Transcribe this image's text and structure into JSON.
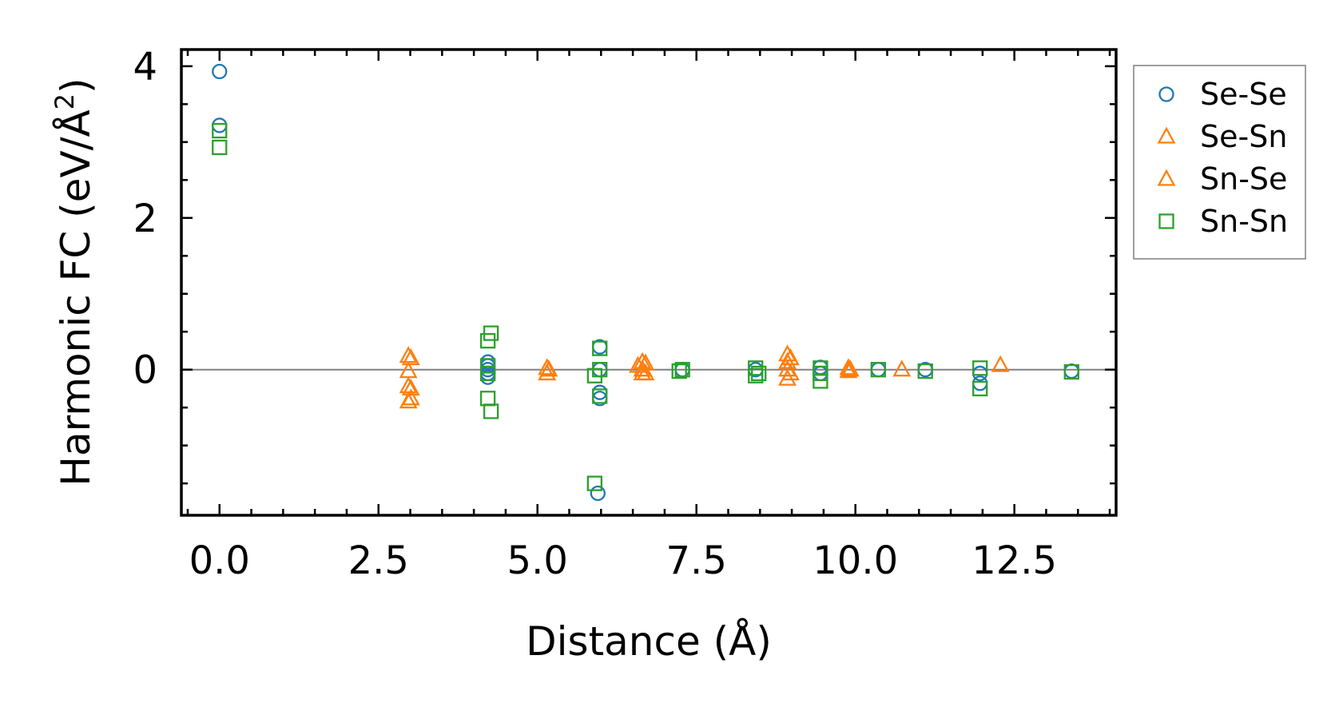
{
  "chart_data": {
    "type": "scatter",
    "xlabel": "Distance (Å)",
    "ylabel_main": "Harmonic FC (eV/Å",
    "ylabel_sup": "2",
    "ylabel_close": ")",
    "xlim": [
      -0.6,
      14.1
    ],
    "ylim": [
      -1.92,
      4.22
    ],
    "x_ticks": [
      0.0,
      2.5,
      5.0,
      7.5,
      10.0,
      12.5
    ],
    "x_tick_labels": [
      "0.0",
      "2.5",
      "5.0",
      "7.5",
      "10.0",
      "12.5"
    ],
    "y_ticks": [
      0,
      2,
      4
    ],
    "y_tick_labels": [
      "0",
      "2",
      "4"
    ],
    "zero_line": true,
    "grid": false,
    "legend_position": "right-outside-top",
    "series": [
      {
        "name": "Se-Se",
        "marker": "circle",
        "color": "#1f77b4",
        "points": [
          [
            0.0,
            3.93
          ],
          [
            0.0,
            3.22
          ],
          [
            4.22,
            0.1
          ],
          [
            4.22,
            0.05
          ],
          [
            4.22,
            0.0
          ],
          [
            4.22,
            -0.05
          ],
          [
            4.22,
            -0.1
          ],
          [
            5.98,
            0.3
          ],
          [
            5.98,
            0.0
          ],
          [
            5.98,
            -0.3
          ],
          [
            5.98,
            -0.38
          ],
          [
            5.95,
            -1.63
          ],
          [
            7.28,
            0.0
          ],
          [
            8.43,
            0.0
          ],
          [
            9.45,
            0.03
          ],
          [
            9.45,
            -0.05
          ],
          [
            10.36,
            0.0
          ],
          [
            11.1,
            0.0
          ],
          [
            11.96,
            -0.05
          ],
          [
            11.96,
            -0.18
          ],
          [
            13.4,
            -0.02
          ]
        ]
      },
      {
        "name": "Se-Sn",
        "marker": "triangle",
        "color": "#ff7f0e",
        "points": [
          [
            2.97,
            0.18
          ],
          [
            2.97,
            -0.02
          ],
          [
            2.97,
            -0.22
          ],
          [
            2.97,
            -0.42
          ],
          [
            5.15,
            0.02
          ],
          [
            5.15,
            -0.05
          ],
          [
            6.65,
            0.1
          ],
          [
            6.65,
            0.0
          ],
          [
            6.65,
            -0.05
          ],
          [
            8.93,
            0.2
          ],
          [
            8.93,
            0.1
          ],
          [
            8.93,
            0.0
          ],
          [
            8.93,
            -0.12
          ],
          [
            9.89,
            0.02
          ],
          [
            9.89,
            -0.02
          ],
          [
            10.73,
            0.0
          ],
          [
            12.28,
            0.06
          ]
        ]
      },
      {
        "name": "Sn-Se",
        "marker": "triangle",
        "color": "#ff7f0e",
        "points": [
          [
            3.01,
            0.15
          ],
          [
            3.01,
            -0.25
          ],
          [
            3.01,
            -0.38
          ],
          [
            5.18,
            0.0
          ],
          [
            6.58,
            0.05
          ],
          [
            6.7,
            0.08
          ],
          [
            6.7,
            -0.05
          ],
          [
            8.98,
            0.15
          ],
          [
            8.98,
            -0.05
          ],
          [
            9.92,
            0.0
          ]
        ]
      },
      {
        "name": "Sn-Sn",
        "marker": "square",
        "color": "#2ca02c",
        "points": [
          [
            0.0,
            3.15
          ],
          [
            0.0,
            2.93
          ],
          [
            4.27,
            0.48
          ],
          [
            4.22,
            0.38
          ],
          [
            4.22,
            0.05
          ],
          [
            4.22,
            -0.05
          ],
          [
            4.22,
            -0.38
          ],
          [
            4.27,
            -0.55
          ],
          [
            5.9,
            -0.08
          ],
          [
            5.98,
            0.28
          ],
          [
            5.98,
            0.0
          ],
          [
            5.98,
            -0.35
          ],
          [
            5.9,
            -1.5
          ],
          [
            7.28,
            0.0
          ],
          [
            7.23,
            -0.02
          ],
          [
            8.43,
            0.02
          ],
          [
            8.48,
            -0.05
          ],
          [
            8.43,
            -0.08
          ],
          [
            9.45,
            0.02
          ],
          [
            9.45,
            -0.05
          ],
          [
            9.45,
            -0.15
          ],
          [
            10.36,
            0.0
          ],
          [
            11.1,
            -0.02
          ],
          [
            11.96,
            0.02
          ],
          [
            11.96,
            -0.25
          ],
          [
            13.4,
            -0.03
          ]
        ]
      }
    ]
  }
}
